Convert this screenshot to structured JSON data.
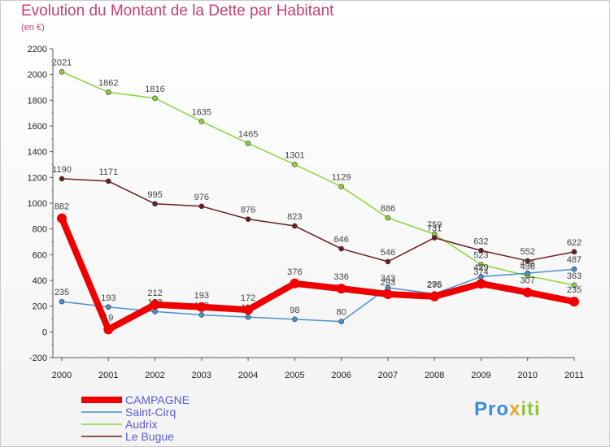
{
  "title": "Evolution du Montant de la Dette par Habitant",
  "subtitle": "(en €)",
  "logo": {
    "part1": "Pro",
    "part2": "x",
    "part3": "iti"
  },
  "chart_data": {
    "type": "line",
    "x": [
      2000,
      2001,
      2002,
      2003,
      2004,
      2005,
      2006,
      2007,
      2008,
      2009,
      2010,
      2011
    ],
    "ylim": [
      -200,
      2200
    ],
    "yticks": [
      -200,
      0,
      200,
      400,
      600,
      800,
      1000,
      1200,
      1400,
      1600,
      1800,
      2000,
      2200
    ],
    "grid": false,
    "legend_position": "bottom-left",
    "series": [
      {
        "name": "Audrix",
        "color": "#8cd33a",
        "width": 1.5,
        "values": [
          2021,
          1862,
          1816,
          1635,
          1465,
          1301,
          1129,
          886,
          759,
          523,
          436,
          363
        ]
      },
      {
        "name": "Le Bugue",
        "color": "#6b1f24",
        "width": 1.5,
        "values": [
          1190,
          1171,
          995,
          976,
          876,
          823,
          646,
          546,
          731,
          632,
          552,
          622
        ]
      },
      {
        "name": "Saint-Cirq",
        "color": "#4a90d0",
        "width": 1.5,
        "values": [
          235,
          193,
          158,
          132,
          115,
          98,
          80,
          343,
          296,
          429,
          456,
          487
        ]
      },
      {
        "name": "CAMPAGNE",
        "color": "#ee0000",
        "width": 8,
        "values": [
          882,
          19,
          212,
          193,
          172,
          376,
          336,
          293,
          275,
          374,
          307,
          235
        ]
      }
    ],
    "legend_order": [
      "CAMPAGNE",
      "Saint-Cirq",
      "Audrix",
      "Le Bugue"
    ]
  }
}
